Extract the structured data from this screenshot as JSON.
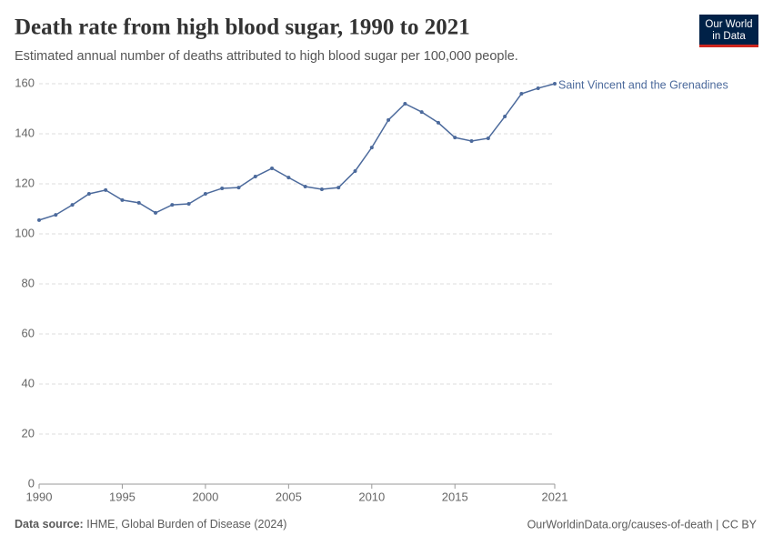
{
  "chart_data": {
    "type": "line",
    "title": "Death rate from high blood sugar, 1990 to 2021",
    "subtitle": "Estimated annual number of deaths attributed to high blood sugar per 100,000 people.",
    "x": [
      1990,
      1991,
      1992,
      1993,
      1994,
      1995,
      1996,
      1997,
      1998,
      1999,
      2000,
      2001,
      2002,
      2003,
      2004,
      2005,
      2006,
      2007,
      2008,
      2009,
      2010,
      2011,
      2012,
      2013,
      2014,
      2015,
      2016,
      2017,
      2018,
      2019,
      2020,
      2021
    ],
    "series": [
      {
        "name": "Saint Vincent and the Grenadines",
        "color": "#4c6a9c",
        "values": [
          105.5,
          107.6,
          111.6,
          116,
          117.5,
          113.5,
          112.4,
          108.4,
          111.6,
          112,
          116,
          118.2,
          118.5,
          122.9,
          126.2,
          122.5,
          118.9,
          117.8,
          118.5,
          125.1,
          134.5,
          145.5,
          152,
          148.7,
          144.4,
          138.5,
          137.1,
          138.2,
          146.9,
          156,
          158.2,
          160
        ]
      }
    ],
    "xlim": [
      1990,
      2021
    ],
    "xticks": [
      1990,
      1995,
      2000,
      2005,
      2010,
      2015,
      2021
    ],
    "ylim": [
      0,
      160
    ],
    "yticks": [
      0,
      20,
      40,
      60,
      80,
      100,
      120,
      140,
      160
    ],
    "grid": true
  },
  "logo": [
    "Our World",
    "in Data"
  ],
  "footer": {
    "source_label": "Data source:",
    "source": "IHME, Global Burden of Disease (2024)",
    "url": "OurWorldinData.org/causes-of-death | CC BY"
  }
}
